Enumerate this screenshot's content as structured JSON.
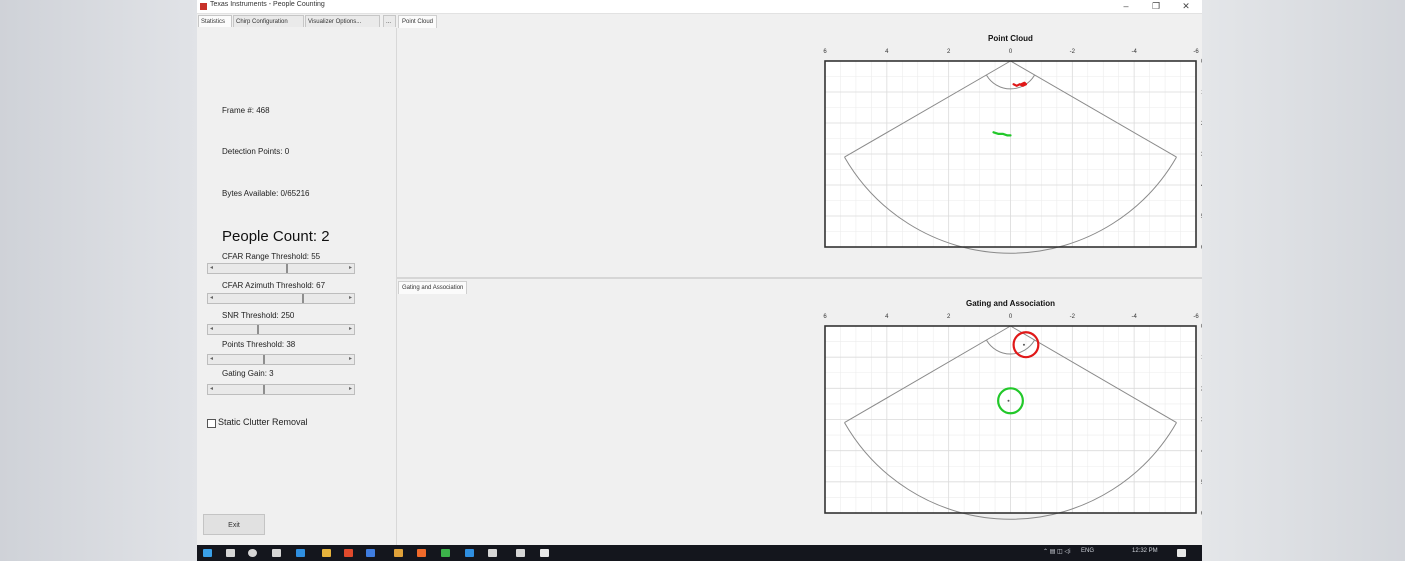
{
  "window": {
    "title": "Texas Instruments - People Counting",
    "controls": [
      "–",
      "❐",
      "✕"
    ]
  },
  "left_tabs": [
    "Statistics",
    "Chirp Configuration",
    "Visualizer Options...",
    "..."
  ],
  "statistics": {
    "frame": "Frame #: 468",
    "detection_points": "Detection Points: 0",
    "bytes_available": "Bytes Available: 0/65216",
    "people_count": "People Count: 2"
  },
  "sliders": [
    {
      "label": "CFAR Range Threshold: 55",
      "value": 0.55
    },
    {
      "label": "CFAR Azimuth Threshold: 67",
      "value": 0.67
    },
    {
      "label": "SNR Threshold: 250",
      "value": 0.32
    },
    {
      "label": "Points Threshold: 38",
      "value": 0.37
    },
    {
      "label": "Gating Gain: 3",
      "value": 0.37
    }
  ],
  "static_clutter": {
    "label": "Static Clutter Removal",
    "checked": false
  },
  "exit_label": "Exit",
  "plot_tabs": [
    "Point Cloud",
    "Gating and Association"
  ],
  "plots": [
    {
      "title": "Point Cloud",
      "x_ticks": [
        "6",
        "4",
        "2",
        "0",
        "-2",
        "-4",
        "-6"
      ],
      "y_ticks": [
        "0",
        "1",
        "2",
        "3",
        "4",
        "5",
        "6"
      ]
    },
    {
      "title": "Gating and Association",
      "x_ticks": [
        "6",
        "4",
        "2",
        "0",
        "-2",
        "-4",
        "-6"
      ],
      "y_ticks": [
        "0",
        "1",
        "2",
        "3",
        "4",
        "5",
        "6"
      ]
    }
  ],
  "chart_data": [
    {
      "type": "scatter",
      "title": "Point Cloud",
      "xlim": [
        6,
        -6
      ],
      "ylim": [
        0,
        6
      ],
      "x_ticks": [
        6,
        4,
        2,
        0,
        -2,
        -4,
        -6
      ],
      "y_ticks": [
        0,
        1,
        2,
        3,
        4,
        5,
        6
      ],
      "grid": true,
      "series": [
        {
          "color": "#e01818",
          "x": [
            -0.1,
            -0.2,
            -0.3,
            -0.4,
            -0.5,
            -0.45,
            -0.35
          ],
          "y": [
            0.75,
            0.8,
            0.75,
            0.8,
            0.75,
            0.7,
            0.75
          ]
        },
        {
          "color": "#22c82a",
          "x": [
            0.55,
            0.4,
            0.25,
            0.1,
            0.0
          ],
          "y": [
            2.3,
            2.35,
            2.35,
            2.4,
            2.4
          ]
        }
      ]
    },
    {
      "type": "scatter",
      "title": "Gating and Association",
      "xlim": [
        6,
        -6
      ],
      "ylim": [
        0,
        6
      ],
      "x_ticks": [
        6,
        4,
        2,
        0,
        -2,
        -4,
        -6
      ],
      "y_ticks": [
        0,
        1,
        2,
        3,
        4,
        5,
        6
      ],
      "grid": true,
      "tracks": [
        {
          "color": "#e01818",
          "x": -0.5,
          "y": 0.6,
          "radius": 0.4
        },
        {
          "color": "#22c82a",
          "x": 0.0,
          "y": 2.4,
          "radius": 0.4
        }
      ]
    }
  ],
  "taskbar": {
    "icon_colors": [
      "#3aa0e8",
      "#d6d6d6",
      "#d6d6d6",
      "#d6d6d6",
      "#2f8fe0",
      "#e6b33c",
      "#e04a2c",
      "#3f7de0",
      "#e0a23a",
      "#f06a2a",
      "#3cb34a",
      "#2f8fe0",
      "#d6d6d6",
      "#d6d6d6",
      "#e8e8e8"
    ],
    "tray_text": "ENG",
    "time": "12:32 PM"
  }
}
